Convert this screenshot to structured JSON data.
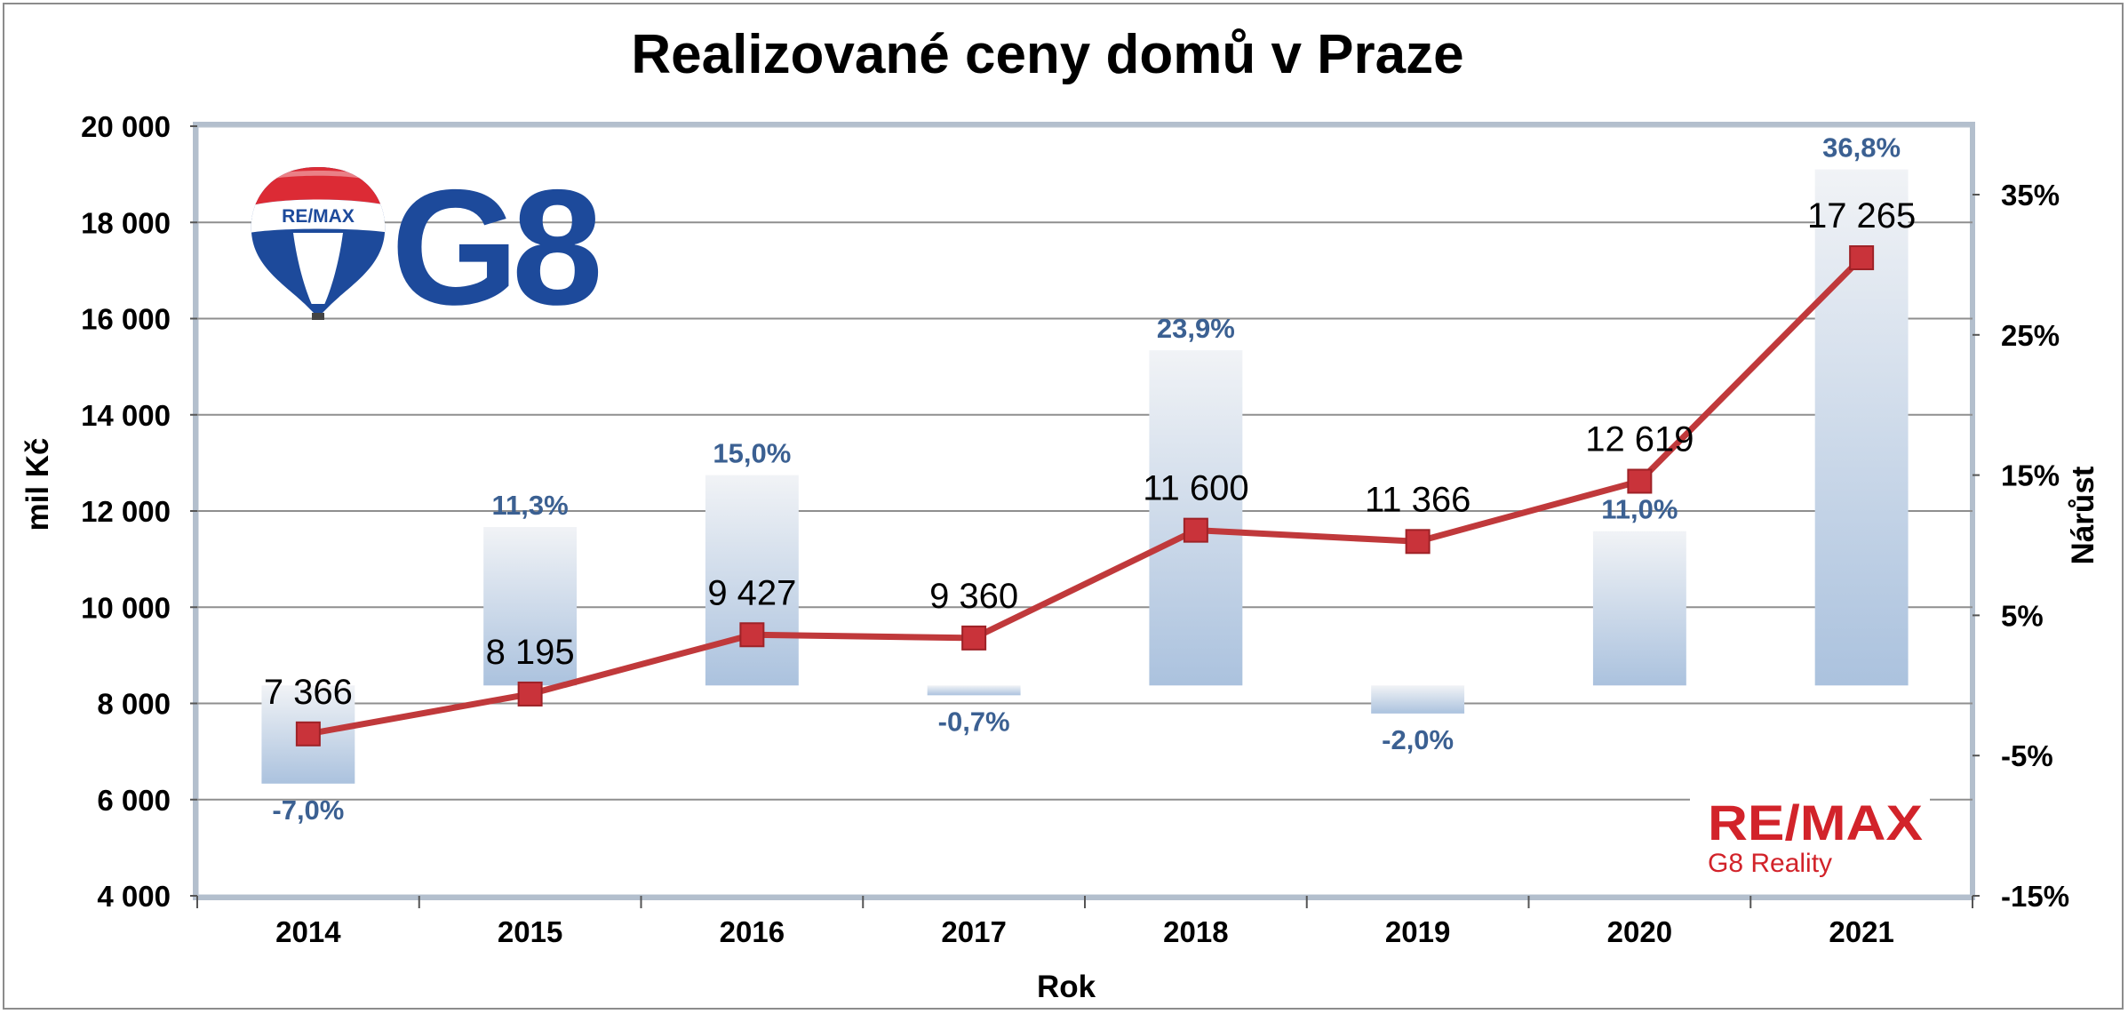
{
  "chart_data": {
    "type": "bar+line",
    "title": "Realizované ceny domů v Praze",
    "xlabel": "Rok",
    "ylabel": "mil Kč",
    "y2label": "Nárůst",
    "categories": [
      "2014",
      "2015",
      "2016",
      "2017",
      "2018",
      "2019",
      "2020",
      "2021"
    ],
    "ylim": [
      4000,
      20000
    ],
    "yticks": [
      4000,
      6000,
      8000,
      10000,
      12000,
      14000,
      16000,
      18000,
      20000
    ],
    "ytick_labels": [
      "4 000",
      "6 000",
      "8 000",
      "10 000",
      "12 000",
      "14 000",
      "16 000",
      "18 000",
      "20 000"
    ],
    "y2lim": [
      -15,
      40
    ],
    "y2ticks": [
      -15,
      -5,
      5,
      15,
      25,
      35
    ],
    "y2tick_labels": [
      "-15%",
      "-5%",
      "5%",
      "15%",
      "25%",
      "35%"
    ],
    "grid": true,
    "series": [
      {
        "type": "line",
        "axis": "left",
        "values": [
          7366,
          8195,
          9427,
          9360,
          11600,
          11366,
          12619,
          17265
        ],
        "labels": [
          "7 366",
          "8 195",
          "9 427",
          "9 360",
          "11 600",
          "11 366",
          "12 619",
          "17 265"
        ],
        "color": "#c0393b"
      },
      {
        "type": "bar",
        "axis": "right",
        "values": [
          -7.0,
          11.3,
          15.0,
          -0.7,
          23.9,
          -2.0,
          11.0,
          36.8
        ],
        "labels": [
          "-7,0%",
          "11,3%",
          "15,0%",
          "-0,7%",
          "23,9%",
          "-2,0%",
          "11,0%",
          "36,8%"
        ],
        "color": "#adc3de"
      }
    ]
  },
  "logos": {
    "top_left": {
      "balloon_text": "RE/MAX",
      "wordmark": "G8"
    },
    "bottom_right": {
      "brand": "RE/MAX",
      "subtitle": "G8 Reality"
    }
  }
}
